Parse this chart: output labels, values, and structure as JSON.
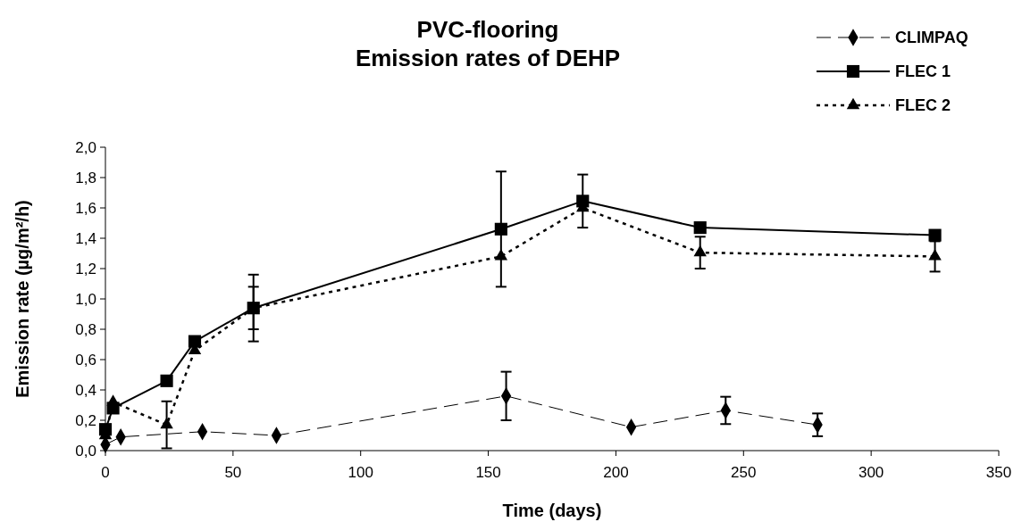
{
  "chart_data": {
    "type": "line",
    "title": "PVC-flooring\nEmission rates of DEHP",
    "xlabel": "Time (days)",
    "ylabel": "Emission rate (µg/m²/h)",
    "xlim": [
      0,
      350
    ],
    "xticks": [
      0,
      50,
      100,
      150,
      200,
      250,
      300,
      350
    ],
    "ylim": [
      0,
      2
    ],
    "yticks": [
      {
        "value": 0,
        "label": "0,0"
      },
      {
        "value": 0.2,
        "label": "0,2"
      },
      {
        "value": 0.4,
        "label": "0,4"
      },
      {
        "value": 0.6,
        "label": "0,6"
      },
      {
        "value": 0.8,
        "label": "0,8"
      },
      {
        "value": 1,
        "label": "1,0"
      },
      {
        "value": 1.2,
        "label": "1,2"
      },
      {
        "value": 1.4,
        "label": "1,4"
      },
      {
        "value": 1.6,
        "label": "1,6"
      },
      {
        "value": 1.8,
        "label": "1,8"
      },
      {
        "value": 2,
        "label": "2,0"
      }
    ],
    "legend": "top right",
    "grid": false,
    "series": [
      {
        "name": "CLIMPAQ",
        "color": "#000000",
        "marker": "diamond",
        "line_style": "dashed",
        "x": [
          0,
          6,
          38,
          67,
          157,
          206,
          243,
          279
        ],
        "values": [
          0.04,
          0.09,
          0.125,
          0.1,
          0.36,
          0.155,
          0.265,
          0.17
        ],
        "errors": [
          null,
          null,
          null,
          null,
          0.16,
          null,
          0.09,
          0.075
        ]
      },
      {
        "name": "FLEC 1",
        "color": "#000000",
        "marker": "square",
        "line_style": "solid",
        "x": [
          0,
          3,
          24,
          35,
          58,
          155,
          187,
          233,
          325
        ],
        "values": [
          0.14,
          0.28,
          0.46,
          0.72,
          0.94,
          1.46,
          1.645,
          1.47,
          1.42
        ],
        "errors": [
          null,
          null,
          null,
          null,
          0.22,
          0.38,
          0.175,
          null,
          null
        ]
      },
      {
        "name": "FLEC 2",
        "color": "#000000",
        "marker": "triangle",
        "line_style": "dotted",
        "x": [
          0,
          3,
          24,
          35,
          58,
          155,
          187,
          233,
          325
        ],
        "values": [
          0.1,
          0.32,
          0.17,
          0.66,
          0.94,
          1.28,
          1.6,
          1.305,
          1.28
        ],
        "errors": [
          null,
          null,
          0.155,
          null,
          0.14,
          null,
          null,
          0.105,
          0.1
        ]
      }
    ]
  }
}
